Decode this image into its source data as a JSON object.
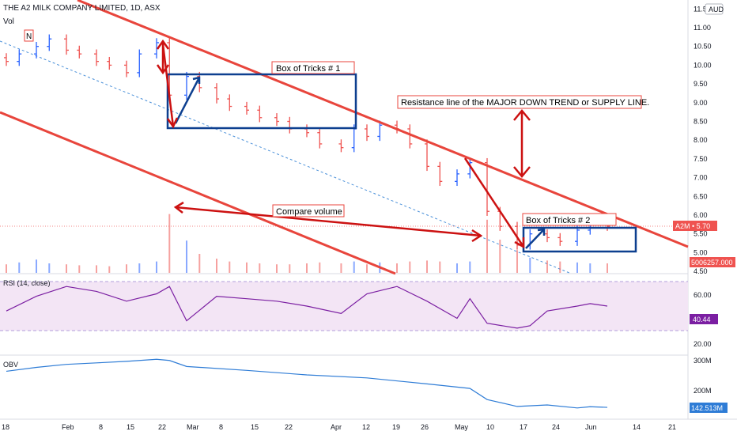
{
  "header": {
    "symbol": "THE A2 MILK COMPANY LIMITED, 1D, ASX",
    "vol_label": "Vol",
    "currency_badge": "AUD"
  },
  "price_axis": {
    "ticks": [
      "11.00",
      "10.50",
      "10.00",
      "9.50",
      "9.00",
      "8.50",
      "8.00",
      "7.50",
      "7.00",
      "6.50",
      "6.00",
      "5.50",
      "5.00",
      "4.50"
    ],
    "top_tick": "11.50",
    "last_price_tag": "A2M • 5.70",
    "volume_tag": "5006257.000"
  },
  "rsi": {
    "label": "RSI (14, close)",
    "ticks": [
      "60.00",
      "20.00"
    ],
    "value_tag": "40.44"
  },
  "obv": {
    "label": "OBV",
    "ticks": [
      "300M",
      "200M"
    ],
    "value_tag": "142.513M"
  },
  "time_axis": [
    "18",
    "Feb",
    "8",
    "15",
    "22",
    "Mar",
    "8",
    "15",
    "22",
    "Apr",
    "12",
    "19",
    "26",
    "May",
    "10",
    "17",
    "24",
    "Jun",
    "14",
    "21"
  ],
  "annotations": {
    "n_marker": "N",
    "box1": "Box of Tricks # 1",
    "box2": "Box of Tricks # 2",
    "resistance": "Resistance line of the MAJOR DOWN TREND or SUPPLY LINE.",
    "compare_volume": "Compare volume"
  },
  "colors": {
    "up": "#2962ff",
    "down": "#ef5350",
    "annotation_red": "#cc1111",
    "box_blue": "#0d3f8f",
    "rsi_line": "#7b1fa2",
    "rsi_band": "#f3e5f5",
    "obv_line": "#2e7cd6"
  },
  "chart_data": [
    {
      "type": "candlestick",
      "title": "THE A2 MILK COMPANY LIMITED, 1D, ASX",
      "ylim": [
        4.5,
        11.5
      ],
      "x": [
        "2021-01-18",
        "2021-01-21",
        "2021-01-25",
        "2021-01-28",
        "2021-02-01",
        "2021-02-04",
        "2021-02-08",
        "2021-02-11",
        "2021-02-15",
        "2021-02-18",
        "2021-02-22",
        "2021-02-25",
        "2021-03-01",
        "2021-03-04",
        "2021-03-08",
        "2021-03-11",
        "2021-03-15",
        "2021-03-18",
        "2021-03-22",
        "2021-03-25",
        "2021-03-29",
        "2021-04-01",
        "2021-04-06",
        "2021-04-09",
        "2021-04-12",
        "2021-04-15",
        "2021-04-19",
        "2021-04-22",
        "2021-04-26",
        "2021-04-29",
        "2021-05-03",
        "2021-05-06",
        "2021-05-10",
        "2021-05-13",
        "2021-05-17",
        "2021-05-20",
        "2021-05-24",
        "2021-05-27",
        "2021-05-31",
        "2021-06-03",
        "2021-06-07"
      ],
      "close": [
        10.1,
        10.3,
        10.5,
        10.7,
        10.4,
        10.3,
        10.1,
        10.0,
        9.8,
        10.3,
        10.6,
        9.2,
        9.7,
        9.4,
        9.1,
        8.9,
        8.8,
        8.6,
        8.5,
        8.3,
        8.2,
        7.9,
        7.8,
        8.3,
        8.1,
        8.4,
        8.3,
        7.9,
        7.3,
        6.9,
        7.1,
        7.4,
        6.1,
        5.7,
        5.2,
        5.5,
        5.4,
        5.3,
        5.6,
        5.8,
        5.7
      ],
      "series": [
        {
          "name": "Vol",
          "values": [
            0.9,
            1.1,
            1.4,
            1.0,
            0.9,
            0.8,
            0.8,
            0.7,
            0.9,
            1.0,
            1.2,
            6.2,
            3.4,
            2.0,
            1.5,
            1.2,
            1.1,
            1.0,
            0.9,
            0.9,
            1.0,
            1.1,
            1.0,
            1.2,
            0.9,
            1.1,
            1.0,
            1.2,
            1.3,
            1.2,
            1.0,
            1.2,
            5.6,
            3.5,
            2.4,
            1.6,
            1.3,
            1.2,
            1.1,
            1.0,
            1.0
          ]
        }
      ]
    },
    {
      "type": "line",
      "title": "RSI (14, close)",
      "ylim": [
        10,
        75
      ],
      "x": [
        "2021-01-18",
        "2021-01-25",
        "2021-02-01",
        "2021-02-08",
        "2021-02-15",
        "2021-02-22",
        "2021-02-25",
        "2021-03-01",
        "2021-03-08",
        "2021-03-15",
        "2021-03-22",
        "2021-03-29",
        "2021-04-06",
        "2021-04-12",
        "2021-04-19",
        "2021-04-26",
        "2021-05-03",
        "2021-05-06",
        "2021-05-10",
        "2021-05-17",
        "2021-05-20",
        "2021-05-24",
        "2021-05-31",
        "2021-06-03",
        "2021-06-07"
      ],
      "values": [
        36,
        48,
        56,
        52,
        44,
        50,
        56,
        28,
        48,
        46,
        44,
        40,
        34,
        50,
        56,
        44,
        30,
        46,
        26,
        22,
        24,
        36,
        40,
        42,
        40
      ]
    },
    {
      "type": "line",
      "title": "OBV",
      "ylim": [
        110,
        320
      ],
      "x": [
        "2021-01-18",
        "2021-01-25",
        "2021-02-01",
        "2021-02-08",
        "2021-02-15",
        "2021-02-22",
        "2021-02-25",
        "2021-03-01",
        "2021-03-15",
        "2021-03-29",
        "2021-04-12",
        "2021-04-26",
        "2021-05-06",
        "2021-05-10",
        "2021-05-17",
        "2021-05-24",
        "2021-05-31",
        "2021-06-03",
        "2021-06-07"
      ],
      "values": [
        262,
        275,
        285,
        290,
        295,
        302,
        298,
        278,
        265,
        250,
        240,
        220,
        205,
        168,
        145,
        150,
        140,
        144,
        142
      ]
    }
  ]
}
